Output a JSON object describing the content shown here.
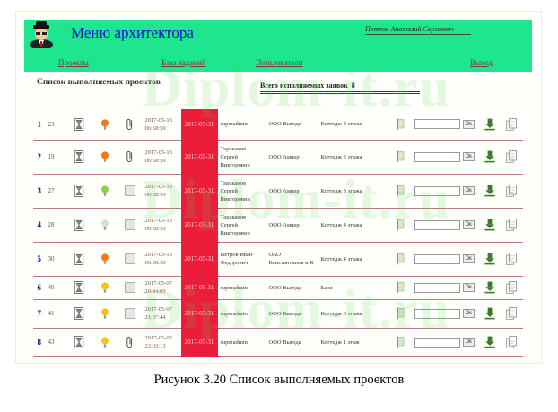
{
  "header": {
    "title": "Меню архитектора",
    "user": "Петров Анатолий Сергеевич",
    "nav": {
      "projects": "Проекты",
      "db": "База заданий",
      "users": "Пользователи",
      "exit": "Выход"
    },
    "color": "#1de68e"
  },
  "list": {
    "title": "Список выполняемых проектов",
    "total_label": "Всего исполняемых заявок",
    "total_count": "8",
    "ok_label": "Ок"
  },
  "rows": [
    {
      "n": "1",
      "id": "23",
      "lamp": "orange",
      "att": "clip",
      "date": "2017-05-18 06:58:59",
      "deadline": "2017-05-31",
      "client": "superadmin",
      "org": "ООО Выгода",
      "obj": "Коттедж 3 этажа"
    },
    {
      "n": "2",
      "id": "19",
      "lamp": "orange",
      "att": "clip",
      "date": "2017-05-18 06:58:59",
      "deadline": "2017-05-31",
      "client": "Тараканов Сергей Викторович",
      "org": "ООО Ампер",
      "obj": "Коттедж 3 этажа"
    },
    {
      "n": "3",
      "id": "27",
      "lamp": "green",
      "att": "box",
      "date": "2017-05-18 06:58:59",
      "deadline": "2017-05-31",
      "client": "Тараканов Сергей Викторович",
      "org": "ООО Ампер",
      "obj": "Коттедж 3 этажа"
    },
    {
      "n": "4",
      "id": "28",
      "lamp": "off",
      "att": "box",
      "date": "2017-05-18 06:58:59",
      "deadline": "2017-05-31",
      "client": "Тараканов Сергей Викторович",
      "org": "ООО Ампер",
      "obj": "Коттедж 4 этажа"
    },
    {
      "n": "5",
      "id": "30",
      "lamp": "orange",
      "att": "box",
      "date": "2017-05-18 06:58:59",
      "deadline": "2017-05-31",
      "client": "Петров Иван Федорович",
      "org": "ОАО Константинов и К",
      "obj": "Коттедж 4 этажа"
    },
    {
      "n": "6",
      "id": "40",
      "lamp": "yellow",
      "att": "box",
      "date": "2017-05-07 20:44:09",
      "deadline": "2017-05-31",
      "client": "superadmin",
      "org": "ООО Выгода",
      "obj": "Баня"
    },
    {
      "n": "7",
      "id": "41",
      "lamp": "yellow",
      "att": "box",
      "date": "2017-05-07 21:07:44",
      "deadline": "2017-05-31",
      "client": "superadmin",
      "org": "ООО Выгода",
      "obj": "Коттедж 3 этажа"
    },
    {
      "n": "8",
      "id": "43",
      "lamp": "yellow",
      "att": "clip",
      "date": "2017-05-07 22:03:13",
      "deadline": "2017-05-31",
      "client": "superadmin",
      "org": "ООО Выгода",
      "obj": "Коттедж 1 этаж"
    }
  ],
  "lamp_colors": {
    "orange": "#f07a12",
    "green": "#8fd14a",
    "yellow": "#f5c21a",
    "off": "#dcdcdc"
  },
  "deadline_color": "#ec1d3a",
  "watermark": "Diplom-it.ru",
  "caption": "Рисунок 3.20 Список выполняемых проектов"
}
